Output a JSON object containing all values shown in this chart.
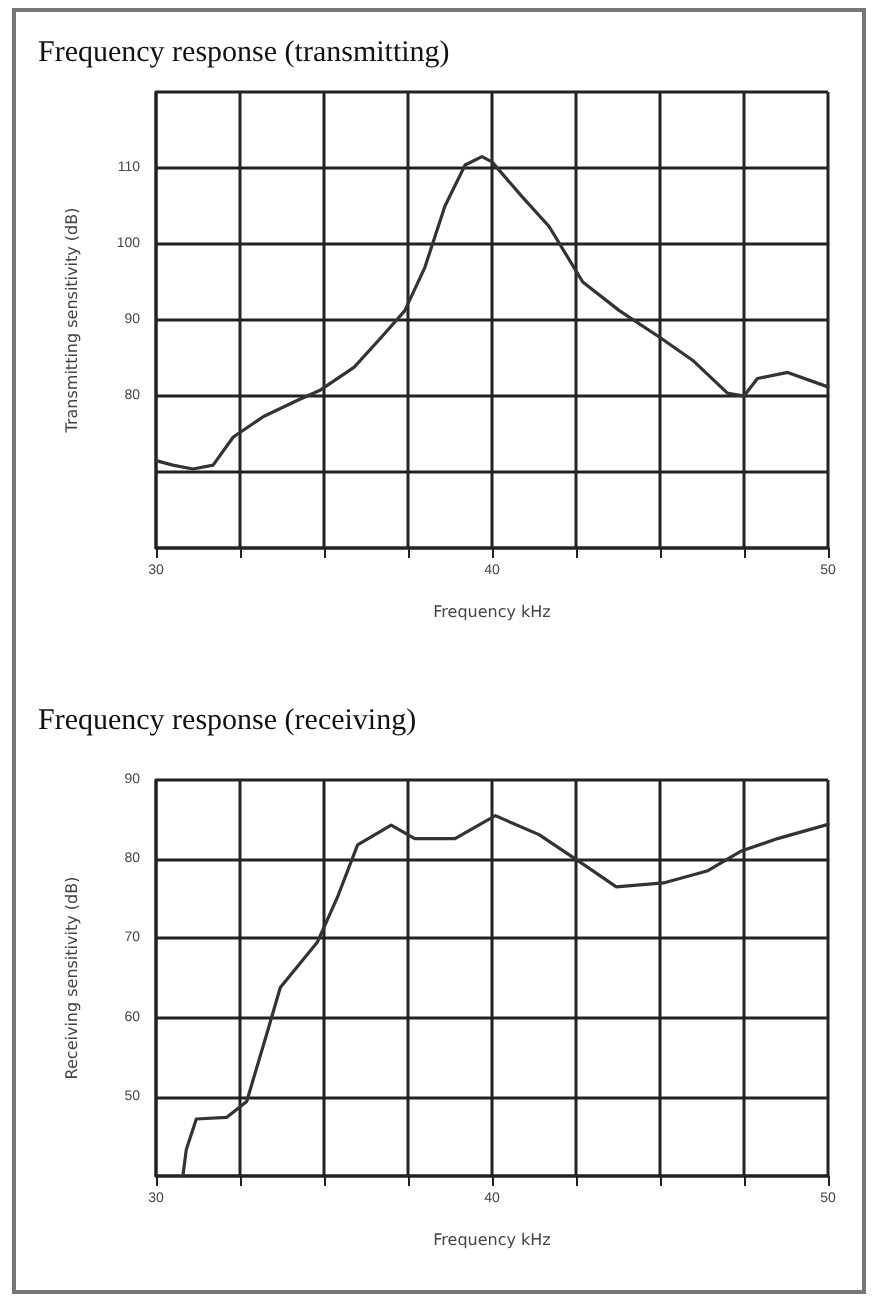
{
  "chart_data": [
    {
      "type": "line",
      "title": "Frequency response (transmitting)",
      "xlabel": "Frequency kHz",
      "ylabel": "Transmitting sensitivity (dB)",
      "grid": true,
      "marker": "none",
      "line_style": "solid",
      "xlim": [
        30,
        50
      ],
      "xticks": [
        30,
        {
          "value": 32.5,
          "label": null
        },
        {
          "value": 35,
          "label": null
        },
        {
          "value": 37.5,
          "label": null
        },
        40,
        {
          "value": 42.5,
          "label": null
        },
        {
          "value": 45,
          "label": null
        },
        {
          "value": 47.5,
          "label": null
        },
        50
      ],
      "ylim": [
        60,
        120
      ],
      "yticks": [
        {
          "value": 60,
          "label": null
        },
        {
          "value": 70,
          "label": null
        },
        80,
        90,
        100,
        110,
        {
          "value": 120,
          "label": null
        }
      ],
      "series": [
        {
          "color": "#333333",
          "x": [
            30,
            30.5,
            31.1,
            31.7,
            32.3,
            33.2,
            34.2,
            34.9,
            35.9,
            36.7,
            37.4,
            38.0,
            38.6,
            39.2,
            39.7,
            40.0,
            40.9,
            41.7,
            42.7,
            43.8,
            45.0,
            46.0,
            47.0,
            47.5,
            47.9,
            48.8,
            50
          ],
          "values": [
            71.5,
            70.9,
            70.4,
            70.9,
            74.6,
            77.3,
            79.4,
            80.8,
            83.8,
            87.7,
            91.2,
            96.9,
            105,
            110.4,
            111.5,
            110.8,
            106.2,
            102.3,
            95.0,
            91.2,
            87.7,
            84.6,
            80.4,
            80,
            82.3,
            83.1,
            81.2
          ]
        }
      ]
    },
    {
      "type": "line",
      "title": "Frequency response (receiving)",
      "xlabel": "Frequency kHz",
      "ylabel": "Receiving sensitivity (dB)",
      "grid": true,
      "marker": "none",
      "line_style": "solid",
      "xlim": [
        30,
        50
      ],
      "xticks": [
        30,
        {
          "value": 32.5,
          "label": null
        },
        {
          "value": 35,
          "label": null
        },
        {
          "value": 37.5,
          "label": null
        },
        40,
        {
          "value": 42.5,
          "label": null
        },
        {
          "value": 45,
          "label": null
        },
        {
          "value": 47.5,
          "label": null
        },
        50
      ],
      "ylim": [
        40,
        90
      ],
      "yticks": [
        {
          "value": 40,
          "label": null
        },
        50,
        60,
        70,
        80,
        90
      ],
      "series": [
        {
          "color": "#333333",
          "x": [
            30.8,
            30.9,
            31.2,
            32.1,
            32.7,
            33.3,
            33.7,
            34.8,
            35.4,
            36.0,
            37.0,
            37.7,
            38.9,
            40.1,
            41.4,
            42.7,
            43.7,
            45.1,
            46.4,
            47.4,
            48.5,
            50
          ],
          "values": [
            40,
            43.3,
            47.2,
            47.4,
            49.4,
            58.0,
            63.8,
            69.5,
            75.2,
            81.8,
            84.3,
            82.6,
            82.6,
            85.5,
            83.1,
            79.4,
            76.5,
            77.0,
            78.5,
            81.0,
            82.6,
            84.4
          ]
        }
      ]
    }
  ]
}
